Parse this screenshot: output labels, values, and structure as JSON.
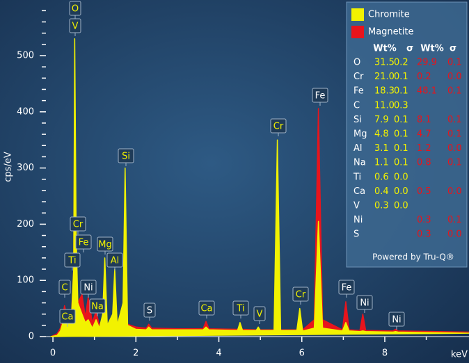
{
  "chart_data": {
    "type": "area",
    "ylabel": "cps/eV",
    "xlabel": "keV",
    "xlim": [
      -0.32,
      10.03
    ],
    "xticks": [
      0,
      2,
      4,
      6,
      8
    ],
    "xminorticks": [
      1,
      3,
      5,
      7,
      9
    ],
    "ylim": [
      0,
      599
    ],
    "yticks": [
      0,
      100,
      200,
      300,
      400,
      500
    ],
    "yminorticks": [
      20,
      40,
      60,
      80,
      120,
      140,
      160,
      180,
      220,
      240,
      260,
      280,
      320,
      340,
      360,
      380,
      420,
      440,
      460,
      480,
      520,
      540,
      560,
      580
    ],
    "x": [
      -0.05,
      0.1,
      0.18,
      0.28,
      0.36,
      0.45,
      0.5,
      0.525,
      0.56,
      0.6,
      0.7,
      0.78,
      0.85,
      0.95,
      1.04,
      1.12,
      1.2,
      1.25,
      1.31,
      1.44,
      1.49,
      1.55,
      1.69,
      1.74,
      1.8,
      2.0,
      2.25,
      2.31,
      2.38,
      3.0,
      3.62,
      3.69,
      3.76,
      4.45,
      4.51,
      4.57,
      4.9,
      4.95,
      5.0,
      5.33,
      5.41,
      5.49,
      5.88,
      5.95,
      6.02,
      6.3,
      6.4,
      6.5,
      6.98,
      7.06,
      7.14,
      7.4,
      7.47,
      7.54,
      8.2,
      8.26,
      8.32,
      10.03
    ],
    "series": [
      {
        "name": "Magnetite",
        "color": "#e8141c",
        "values": [
          0,
          5,
          15,
          55,
          30,
          45,
          120,
          415,
          150,
          60,
          75,
          35,
          70,
          25,
          45,
          20,
          30,
          90,
          20,
          30,
          65,
          20,
          50,
          195,
          22,
          17,
          15,
          22,
          15,
          14,
          14,
          27,
          14,
          13,
          15,
          13,
          12,
          13,
          12,
          12,
          22,
          12,
          12,
          16,
          12,
          30,
          406,
          30,
          12,
          62,
          12,
          11,
          40,
          11,
          10,
          13,
          10,
          8
        ]
      },
      {
        "name": "Chromite",
        "color": "#f2f200",
        "values": [
          0,
          2,
          10,
          35,
          20,
          40,
          120,
          530,
          180,
          60,
          40,
          25,
          30,
          15,
          30,
          15,
          40,
          140,
          20,
          40,
          120,
          20,
          60,
          300,
          20,
          13,
          12,
          17,
          12,
          12,
          12,
          17,
          12,
          11,
          25,
          11,
          11,
          17,
          11,
          11,
          350,
          11,
          11,
          50,
          10,
          15,
          205,
          15,
          10,
          25,
          10,
          9,
          10,
          9,
          8,
          9,
          8,
          6
        ]
      }
    ],
    "annotations": [
      {
        "text": "O",
        "color": "#f2f200"
      },
      {
        "text": "V",
        "color": "#f2f200"
      },
      {
        "text": "Cr",
        "color": "#f2f200"
      },
      {
        "text": "Fe",
        "color": "#f2f200"
      },
      {
        "text": "Ti",
        "color": "#f2f200"
      },
      {
        "text": "C",
        "color": "#f2f200"
      },
      {
        "text": "Ca",
        "color": "#f2f200"
      },
      {
        "text": "Ni",
        "color": "#ffffff"
      },
      {
        "text": "Na",
        "color": "#f2f200"
      },
      {
        "text": "Mg",
        "color": "#f2f200"
      },
      {
        "text": "Al",
        "color": "#f2f200"
      },
      {
        "text": "Si",
        "color": "#f2f200"
      },
      {
        "text": "S",
        "color": "#ffffff"
      },
      {
        "text": "Ca",
        "color": "#f2f200"
      },
      {
        "text": "Ti",
        "color": "#f2f200"
      },
      {
        "text": "V",
        "color": "#f2f200"
      },
      {
        "text": "Cr",
        "color": "#f2f200"
      },
      {
        "text": "Cr",
        "color": "#f2f200"
      },
      {
        "text": "Fe",
        "color": "#ffffff"
      },
      {
        "text": "Fe",
        "color": "#ffffff"
      },
      {
        "text": "Ni",
        "color": "#ffffff"
      },
      {
        "text": "Ni",
        "color": "#ffffff"
      }
    ],
    "quant": {
      "headers": [
        "Wt%",
        "σ",
        "Wt%",
        "σ"
      ],
      "rows": [
        [
          "O",
          "31.5",
          "0.2",
          "29.9",
          "0.1"
        ],
        [
          "Cr",
          "21.0",
          "0.1",
          "0.2",
          "0.0"
        ],
        [
          "Fe",
          "18.3",
          "0.1",
          "48.1",
          "0.1"
        ],
        [
          "C",
          "11.0",
          "0.3",
          null,
          null
        ],
        [
          "Si",
          "7.9",
          "0.1",
          "8.1",
          "0.1"
        ],
        [
          "Mg",
          "4.8",
          "0.1",
          "4.7",
          "0.1"
        ],
        [
          "Al",
          "3.1",
          "0.1",
          "1.2",
          "0.0"
        ],
        [
          "Na",
          "1.1",
          "0.1",
          "0.8",
          "0.1"
        ],
        [
          "Ti",
          "0.6",
          "0.0",
          null,
          null
        ],
        [
          "Ca",
          "0.4",
          "0.0",
          "0.5",
          "0.0"
        ],
        [
          "V",
          "0.3",
          "0.0",
          null,
          null
        ],
        [
          "Ni",
          null,
          null,
          "0.3",
          "0.1"
        ],
        [
          "S",
          null,
          null,
          "0.3",
          "0.0"
        ]
      ],
      "footer": "Powered by Tru-Q®"
    }
  }
}
